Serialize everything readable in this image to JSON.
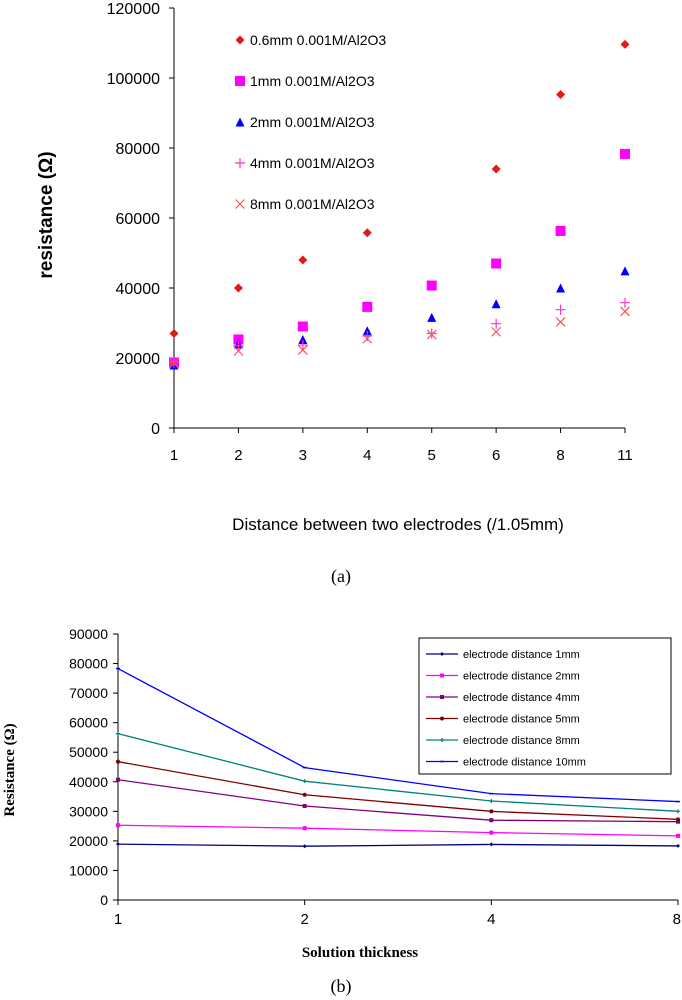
{
  "captions": {
    "a": "(a)",
    "b": "(b)"
  },
  "chart_data": [
    {
      "type": "scatter",
      "title": "",
      "xlabel": "Distance between two electrodes (/1.05mm)",
      "ylabel": "resistance (Ω)",
      "categories": [
        "1",
        "2",
        "3",
        "4",
        "5",
        "6",
        "8",
        "11"
      ],
      "ylim": [
        0,
        120000
      ],
      "yticks": [
        "0",
        "20000",
        "40000",
        "60000",
        "80000",
        "100000",
        "120000"
      ],
      "grid": false,
      "legend_position": "top-left inside",
      "series": [
        {
          "name": "0.6mm 0.001M/Al2O3",
          "color": "#e31a1c",
          "marker": "diamond",
          "values": [
            27000,
            40000,
            48000,
            55800,
            null,
            74000,
            95300,
            109600
          ]
        },
        {
          "name": "1mm 0.001M/Al2O3",
          "color": "#ff00ff",
          "marker": "square",
          "values": [
            18700,
            25300,
            29000,
            34600,
            40700,
            47000,
            56300,
            78300
          ]
        },
        {
          "name": "2mm 0.001M/Al2O3",
          "color": "#0000ff",
          "marker": "triangle",
          "values": [
            18000,
            24000,
            25300,
            27800,
            31600,
            35500,
            40000,
            44900
          ]
        },
        {
          "name": "4mm 0.001M/Al2O3",
          "color": "#ff33cc",
          "marker": "plus",
          "values": [
            18700,
            23500,
            23700,
            26300,
            27000,
            29800,
            33800,
            35800
          ]
        },
        {
          "name": "8mm 0.001M/Al2O3",
          "color": "#ff5050",
          "marker": "x",
          "values": [
            18500,
            22000,
            22300,
            25500,
            26700,
            27500,
            30300,
            33300
          ]
        }
      ]
    },
    {
      "type": "line",
      "title": "",
      "xlabel": "Solution thickness",
      "ylabel": "Resistance (Ω)",
      "categories": [
        "1",
        "2",
        "4",
        "8"
      ],
      "ylim": [
        0,
        90000
      ],
      "yticks": [
        "0",
        "10000",
        "20000",
        "30000",
        "40000",
        "50000",
        "60000",
        "70000",
        "80000",
        "90000"
      ],
      "grid": false,
      "legend_position": "top-right inside, boxed",
      "series": [
        {
          "name": "electrode distance 1mm",
          "color": "#000080",
          "marker": "diamond",
          "values": [
            18900,
            18200,
            18800,
            18300
          ]
        },
        {
          "name": "electrode distance 2mm",
          "color": "#ff00ff",
          "marker": "square",
          "values": [
            25300,
            24300,
            22800,
            21700
          ]
        },
        {
          "name": "electrode distance 4mm",
          "color": "#800080",
          "marker": "square",
          "values": [
            40700,
            31800,
            27000,
            26500
          ]
        },
        {
          "name": "electrode distance 5mm",
          "color": "#800000",
          "marker": "circle",
          "values": [
            46800,
            35600,
            30000,
            27300
          ]
        },
        {
          "name": "electrode distance 8mm",
          "color": "#008080",
          "marker": "plus",
          "values": [
            56300,
            40200,
            33500,
            30000
          ]
        },
        {
          "name": "electrode distance 10mm",
          "color": "#0000ff",
          "marker": "dash",
          "values": [
            78300,
            44800,
            36000,
            33300
          ]
        }
      ]
    }
  ]
}
